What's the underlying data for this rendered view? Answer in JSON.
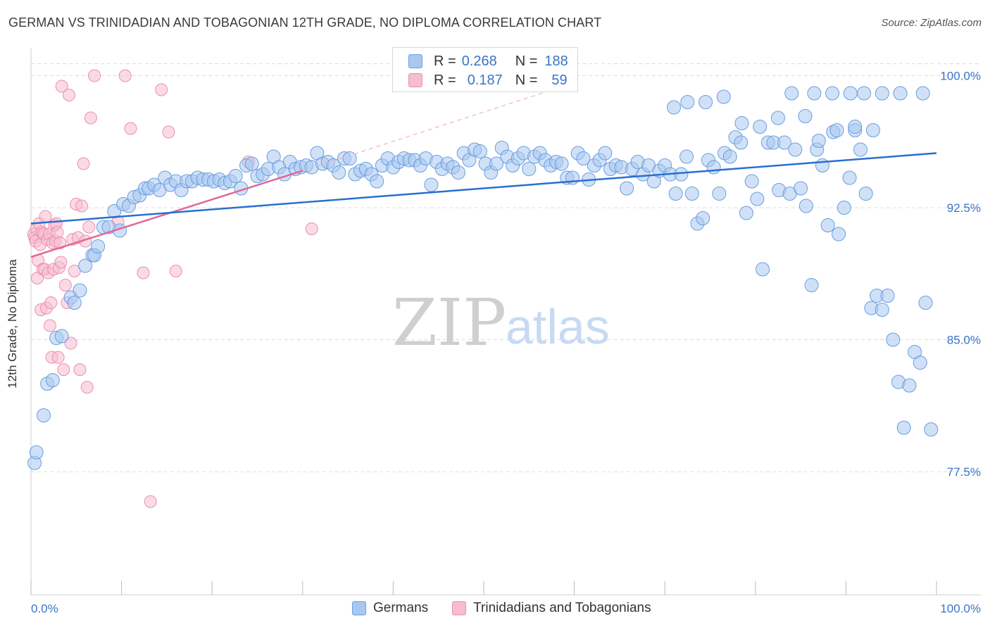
{
  "header": {
    "title": "GERMAN VS TRINIDADIAN AND TOBAGONIAN 12TH GRADE, NO DIPLOMA CORRELATION CHART",
    "source": "Source: ZipAtlas.com"
  },
  "watermark": {
    "zip": "ZIP",
    "atlas": "atlas"
  },
  "legend_top": {
    "rows": [
      {
        "r_label": "R =",
        "r_value": "0.268",
        "n_label": "N =",
        "n_value": "188"
      },
      {
        "r_label": "R =",
        "r_value": "0.187",
        "n_label": "N =",
        "n_value": "59"
      }
    ]
  },
  "legend_bottom": {
    "items": [
      {
        "label": "Germans"
      },
      {
        "label": "Trinidadians and Tobagonians"
      }
    ]
  },
  "colors": {
    "german_fill": "#a9c8f0",
    "german_stroke": "#6a9ee0",
    "german_line": "#2a6fd0",
    "trini_fill": "#f6bdd0",
    "trini_stroke": "#ee8db0",
    "trini_line": "#e0689a",
    "tick_label": "#3a74c9",
    "grid": "#dcdcdc"
  },
  "chart_data": {
    "type": "scatter",
    "title": "GERMAN VS TRINIDADIAN AND TOBAGONIAN 12TH GRADE, NO DIPLOMA CORRELATION CHART",
    "xlabel": "",
    "ylabel": "12th Grade, No Diploma",
    "xlim": [
      0,
      100
    ],
    "ylim": [
      70.5,
      101.5
    ],
    "x_tick_labels": [
      "0.0%",
      "100.0%"
    ],
    "y_ticks": [
      100.0,
      92.5,
      85.0,
      77.5
    ],
    "y_tick_labels": [
      "100.0%",
      "92.5%",
      "85.0%",
      "77.5%"
    ],
    "grid": "horizontal dashed",
    "legend": "top-center",
    "series": [
      {
        "name": "Germans",
        "r": 0.268,
        "n": 188,
        "trend": {
          "x": [
            0,
            100
          ],
          "y": [
            91.6,
            95.6
          ]
        },
        "points": [
          [
            0.4,
            78.0
          ],
          [
            0.6,
            78.6
          ],
          [
            1.4,
            80.7
          ],
          [
            1.8,
            82.5
          ],
          [
            2.4,
            82.7
          ],
          [
            2.8,
            85.1
          ],
          [
            3.4,
            85.2
          ],
          [
            4.4,
            87.4
          ],
          [
            4.8,
            87.1
          ],
          [
            5.4,
            87.8
          ],
          [
            6.0,
            89.2
          ],
          [
            6.8,
            89.8
          ],
          [
            7.0,
            89.8
          ],
          [
            7.4,
            90.3
          ],
          [
            8.0,
            91.4
          ],
          [
            8.6,
            91.4
          ],
          [
            9.2,
            92.3
          ],
          [
            9.8,
            91.2
          ],
          [
            10.2,
            92.7
          ],
          [
            10.8,
            92.6
          ],
          [
            11.4,
            93.1
          ],
          [
            12.0,
            93.2
          ],
          [
            12.6,
            93.6
          ],
          [
            13.0,
            93.6
          ],
          [
            13.6,
            93.8
          ],
          [
            14.2,
            93.5
          ],
          [
            14.8,
            94.2
          ],
          [
            15.4,
            93.8
          ],
          [
            16.0,
            94.0
          ],
          [
            16.6,
            93.5
          ],
          [
            17.2,
            94.0
          ],
          [
            17.8,
            94.0
          ],
          [
            18.4,
            94.2
          ],
          [
            19.0,
            94.1
          ],
          [
            19.6,
            94.1
          ],
          [
            20.2,
            94.0
          ],
          [
            20.8,
            94.1
          ],
          [
            21.4,
            93.9
          ],
          [
            22.0,
            94.0
          ],
          [
            22.6,
            94.3
          ],
          [
            23.2,
            93.6
          ],
          [
            23.8,
            94.9
          ],
          [
            24.4,
            95.0
          ],
          [
            25.0,
            94.3
          ],
          [
            25.6,
            94.4
          ],
          [
            26.2,
            94.7
          ],
          [
            26.8,
            95.4
          ],
          [
            27.4,
            94.8
          ],
          [
            28.0,
            94.4
          ],
          [
            28.6,
            95.1
          ],
          [
            29.2,
            94.7
          ],
          [
            29.8,
            94.8
          ],
          [
            30.4,
            94.9
          ],
          [
            31.0,
            94.8
          ],
          [
            31.6,
            95.6
          ],
          [
            32.2,
            95.0
          ],
          [
            32.8,
            95.1
          ],
          [
            33.4,
            94.9
          ],
          [
            34.0,
            94.5
          ],
          [
            34.6,
            95.3
          ],
          [
            35.2,
            95.3
          ],
          [
            35.8,
            94.4
          ],
          [
            36.4,
            94.6
          ],
          [
            37.0,
            94.7
          ],
          [
            37.6,
            94.4
          ],
          [
            38.2,
            94.0
          ],
          [
            38.8,
            94.9
          ],
          [
            39.4,
            95.3
          ],
          [
            40.0,
            94.8
          ],
          [
            40.6,
            95.1
          ],
          [
            41.2,
            95.3
          ],
          [
            41.8,
            95.2
          ],
          [
            42.4,
            95.2
          ],
          [
            43.0,
            94.9
          ],
          [
            43.6,
            95.3
          ],
          [
            44.2,
            93.8
          ],
          [
            44.8,
            95.1
          ],
          [
            45.4,
            94.7
          ],
          [
            46.0,
            95.0
          ],
          [
            46.6,
            94.8
          ],
          [
            47.2,
            94.5
          ],
          [
            47.8,
            95.6
          ],
          [
            48.4,
            95.2
          ],
          [
            49.0,
            95.8
          ],
          [
            49.6,
            95.7
          ],
          [
            50.2,
            95.0
          ],
          [
            50.8,
            94.5
          ],
          [
            51.4,
            95.0
          ],
          [
            52.0,
            95.9
          ],
          [
            52.6,
            95.4
          ],
          [
            53.2,
            94.9
          ],
          [
            53.8,
            95.3
          ],
          [
            54.4,
            95.6
          ],
          [
            55.0,
            94.7
          ],
          [
            55.6,
            95.4
          ],
          [
            56.2,
            95.6
          ],
          [
            56.8,
            95.2
          ],
          [
            57.4,
            94.9
          ],
          [
            58.0,
            95.1
          ],
          [
            58.6,
            95.0
          ],
          [
            59.2,
            94.2
          ],
          [
            59.8,
            94.2
          ],
          [
            60.4,
            95.6
          ],
          [
            61.0,
            95.3
          ],
          [
            61.6,
            94.1
          ],
          [
            62.2,
            94.9
          ],
          [
            62.8,
            95.2
          ],
          [
            63.4,
            95.6
          ],
          [
            64.0,
            94.7
          ],
          [
            64.6,
            94.9
          ],
          [
            65.2,
            94.8
          ],
          [
            65.8,
            93.6
          ],
          [
            66.4,
            94.7
          ],
          [
            67.0,
            95.1
          ],
          [
            67.6,
            94.4
          ],
          [
            68.2,
            94.9
          ],
          [
            68.8,
            94.0
          ],
          [
            69.4,
            94.6
          ],
          [
            70.0,
            94.9
          ],
          [
            70.6,
            94.4
          ],
          [
            71.2,
            93.3
          ],
          [
            71.8,
            94.4
          ],
          [
            72.4,
            95.4
          ],
          [
            73.0,
            93.3
          ],
          [
            73.6,
            91.6
          ],
          [
            74.2,
            91.9
          ],
          [
            74.8,
            95.2
          ],
          [
            75.4,
            94.8
          ],
          [
            76.0,
            93.3
          ],
          [
            76.6,
            95.6
          ],
          [
            77.2,
            95.4
          ],
          [
            77.8,
            96.5
          ],
          [
            78.4,
            96.2
          ],
          [
            79.0,
            92.2
          ],
          [
            79.6,
            94.0
          ],
          [
            80.2,
            93.0
          ],
          [
            80.8,
            89.0
          ],
          [
            81.4,
            96.2
          ],
          [
            82.0,
            96.2
          ],
          [
            82.6,
            93.5
          ],
          [
            83.2,
            96.2
          ],
          [
            83.8,
            93.3
          ],
          [
            84.4,
            95.8
          ],
          [
            85.0,
            93.6
          ],
          [
            85.6,
            92.6
          ],
          [
            86.2,
            88.1
          ],
          [
            86.8,
            95.8
          ],
          [
            87.4,
            94.9
          ],
          [
            88.0,
            91.5
          ],
          [
            88.6,
            96.8
          ],
          [
            89.2,
            91.0
          ],
          [
            89.8,
            92.5
          ],
          [
            90.4,
            94.2
          ],
          [
            91.0,
            96.9
          ],
          [
            91.6,
            95.8
          ],
          [
            92.2,
            93.3
          ],
          [
            92.8,
            86.8
          ],
          [
            93.4,
            87.5
          ],
          [
            94.0,
            86.7
          ],
          [
            94.6,
            87.5
          ],
          [
            95.2,
            85.0
          ],
          [
            95.8,
            82.6
          ],
          [
            96.4,
            80.0
          ],
          [
            97.0,
            82.4
          ],
          [
            97.6,
            84.3
          ],
          [
            98.2,
            83.7
          ],
          [
            98.8,
            87.1
          ],
          [
            99.4,
            79.9
          ],
          [
            84.0,
            99.0
          ],
          [
            86.5,
            99.0
          ],
          [
            88.5,
            99.0
          ],
          [
            90.5,
            99.0
          ],
          [
            92.0,
            99.0
          ],
          [
            94.0,
            99.0
          ],
          [
            96.0,
            99.0
          ],
          [
            98.5,
            99.0
          ],
          [
            71.0,
            98.2
          ],
          [
            72.5,
            98.5
          ],
          [
            74.5,
            98.5
          ],
          [
            76.5,
            98.8
          ],
          [
            78.5,
            97.3
          ],
          [
            80.5,
            97.1
          ],
          [
            82.5,
            97.6
          ],
          [
            85.5,
            97.7
          ],
          [
            87.0,
            96.3
          ],
          [
            89.0,
            96.9
          ],
          [
            91.0,
            97.1
          ],
          [
            93.0,
            96.9
          ]
        ]
      },
      {
        "name": "Trinidadians and Tobagonians",
        "r": 0.187,
        "n": 59,
        "trend": {
          "x": [
            0,
            30
          ],
          "y": [
            89.7,
            94.6
          ]
        },
        "trend_extension": {
          "x": [
            30,
            60
          ],
          "y": [
            94.6,
            99.6
          ]
        },
        "points": [
          [
            0.3,
            91.0
          ],
          [
            0.4,
            90.8
          ],
          [
            0.5,
            90.6
          ],
          [
            0.6,
            91.3
          ],
          [
            0.7,
            88.5
          ],
          [
            0.8,
            89.5
          ],
          [
            0.9,
            91.6
          ],
          [
            1.0,
            90.4
          ],
          [
            1.1,
            86.7
          ],
          [
            1.2,
            91.1
          ],
          [
            1.3,
            89.0
          ],
          [
            1.4,
            91.0
          ],
          [
            1.5,
            89.0
          ],
          [
            1.6,
            92.0
          ],
          [
            1.7,
            86.8
          ],
          [
            1.8,
            90.7
          ],
          [
            1.9,
            88.8
          ],
          [
            2.0,
            91.0
          ],
          [
            2.1,
            85.8
          ],
          [
            2.2,
            87.1
          ],
          [
            2.3,
            84.0
          ],
          [
            2.4,
            90.5
          ],
          [
            2.5,
            89.0
          ],
          [
            2.6,
            91.5
          ],
          [
            2.7,
            90.6
          ],
          [
            2.8,
            91.6
          ],
          [
            2.9,
            91.1
          ],
          [
            3.0,
            84.0
          ],
          [
            3.1,
            89.1
          ],
          [
            3.2,
            90.5
          ],
          [
            3.3,
            89.4
          ],
          [
            3.4,
            99.4
          ],
          [
            3.6,
            83.3
          ],
          [
            3.8,
            88.1
          ],
          [
            4.0,
            87.1
          ],
          [
            4.2,
            98.9
          ],
          [
            4.4,
            84.8
          ],
          [
            4.6,
            90.7
          ],
          [
            4.8,
            88.9
          ],
          [
            5.0,
            92.7
          ],
          [
            5.2,
            90.8
          ],
          [
            5.4,
            83.3
          ],
          [
            5.6,
            92.6
          ],
          [
            5.8,
            95.0
          ],
          [
            6.0,
            90.6
          ],
          [
            6.2,
            82.3
          ],
          [
            6.4,
            91.4
          ],
          [
            6.6,
            97.6
          ],
          [
            7.0,
            100.0
          ],
          [
            9.6,
            91.7
          ],
          [
            10.4,
            100.0
          ],
          [
            11.0,
            97.0
          ],
          [
            12.4,
            88.8
          ],
          [
            13.2,
            75.8
          ],
          [
            14.4,
            99.2
          ],
          [
            15.2,
            96.8
          ],
          [
            16.0,
            88.9
          ],
          [
            24.0,
            95.1
          ],
          [
            31.0,
            91.3
          ]
        ]
      }
    ]
  }
}
